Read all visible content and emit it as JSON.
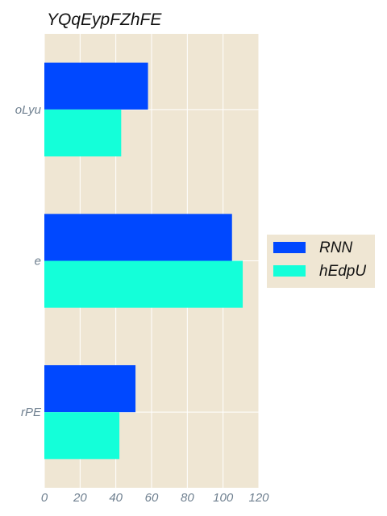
{
  "chart_data": {
    "type": "bar",
    "orientation": "horizontal",
    "title": "YQqEypFZhFE",
    "categories": [
      "oLyu",
      "e",
      "rPE"
    ],
    "series": [
      {
        "name": "RNN",
        "values": [
          58,
          105,
          51
        ],
        "color": "#0048ff"
      },
      {
        "name": "hEdpU",
        "values": [
          43,
          111,
          42
        ],
        "color": "#14ffd9"
      }
    ],
    "xlim": [
      0,
      120
    ],
    "xticks": [
      0,
      20,
      40,
      60,
      80,
      100,
      120
    ],
    "xlabel": "",
    "ylabel": "",
    "grid": true,
    "legend_position": "right",
    "background_color": "#efe6d3",
    "grid_color": "#ffffff",
    "tick_label_color": "#6e7f8f"
  }
}
